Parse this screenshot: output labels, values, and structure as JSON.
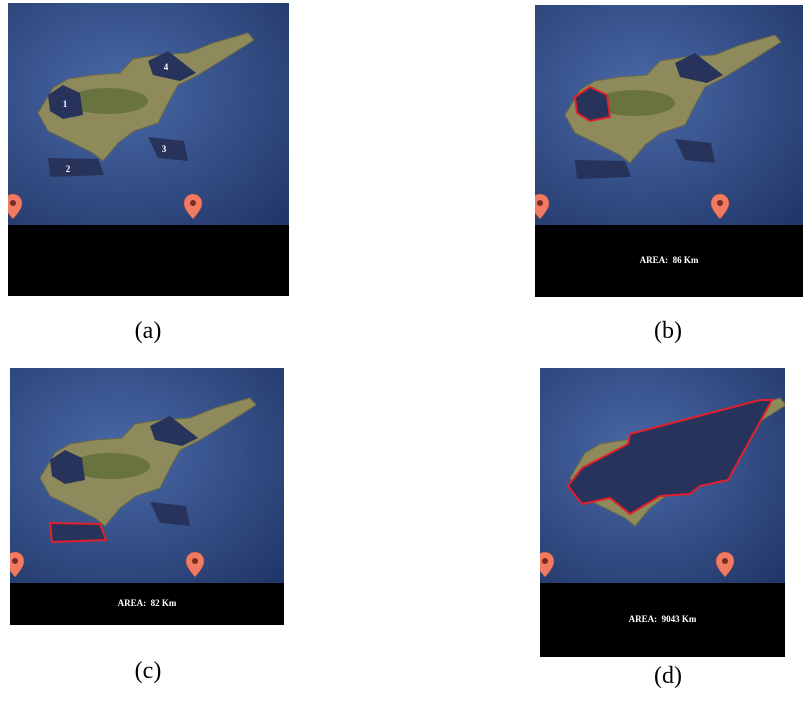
{
  "panels": [
    {
      "caption": "(a)",
      "polygon_labels": [
        "1",
        "2",
        "3",
        "4"
      ]
    },
    {
      "caption": "(b)",
      "area": "AREA:  86 Km"
    },
    {
      "caption": "(c)",
      "area": "AREA:  82 Km"
    },
    {
      "caption": "(d)",
      "area": "AREA:  9043 Km"
    }
  ]
}
